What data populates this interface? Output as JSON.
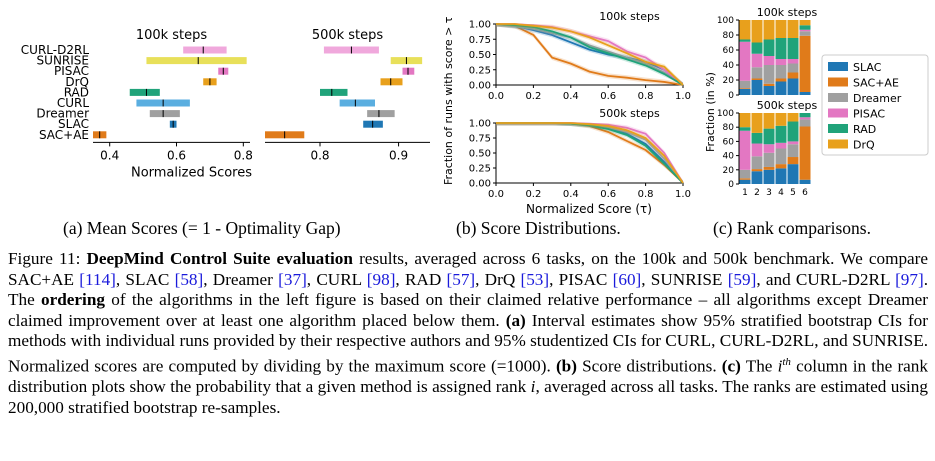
{
  "figure_title": "Figure 11:",
  "panels": {
    "a_label": "(a) Mean Scores (= 1 - Optimality Gap)",
    "b_label": "(b) Score Distributions.",
    "c_label": "(c) Rank comparisons."
  },
  "colors": {
    "SLAC": "#1f77b4",
    "SAC+AE": "#e07b1a",
    "Dreamer": "#a0a0a0",
    "PISAC": "#e377c2",
    "RAD": "#20a37a",
    "DrQ": "#e8a01c",
    "SUNRISE": "#e8e05a",
    "CURL-D2RL": "#f0a8dc",
    "CURL": "#5aaee0"
  },
  "chart_data": [
    {
      "type": "interval",
      "title": "100k steps",
      "xlabel": "Normalized Scores",
      "xlim": [
        0.35,
        0.82
      ],
      "xticks": [
        "0.4",
        "0.6",
        "0.8"
      ],
      "xtick_values": [
        0.4,
        0.6,
        0.8
      ],
      "methods": [
        "CURL-D2RL",
        "SUNRISE",
        "PISAC",
        "DrQ",
        "RAD",
        "CURL",
        "Dreamer",
        "SLAC",
        "SAC+AE"
      ],
      "lows": [
        0.62,
        0.51,
        0.725,
        0.68,
        0.46,
        0.48,
        0.52,
        0.58,
        0.35
      ],
      "highs": [
        0.75,
        0.81,
        0.755,
        0.72,
        0.55,
        0.64,
        0.61,
        0.6,
        0.39
      ],
      "means": [
        0.68,
        0.665,
        0.74,
        0.7,
        0.51,
        0.56,
        0.56,
        0.59,
        0.37
      ]
    },
    {
      "type": "interval",
      "title": "500k steps",
      "xlabel": "",
      "xlim": [
        0.73,
        0.94
      ],
      "xticks": [
        "0.8",
        "0.9"
      ],
      "xtick_values": [
        0.8,
        0.9
      ],
      "methods": [
        "CURL-D2RL",
        "SUNRISE",
        "PISAC",
        "DrQ",
        "RAD",
        "CURL",
        "Dreamer",
        "SLAC",
        "SAC+AE"
      ],
      "lows": [
        0.805,
        0.89,
        0.905,
        0.877,
        0.8,
        0.825,
        0.86,
        0.855,
        0.73
      ],
      "highs": [
        0.875,
        0.93,
        0.92,
        0.905,
        0.835,
        0.87,
        0.895,
        0.88,
        0.78
      ],
      "means": [
        0.84,
        0.91,
        0.912,
        0.89,
        0.815,
        0.845,
        0.875,
        0.867,
        0.755
      ]
    },
    {
      "type": "line",
      "title": "100k steps",
      "ylabel": "Fraction of runs with score > τ",
      "xlabel": "",
      "xlim": [
        0,
        1
      ],
      "ylim": [
        0,
        1
      ],
      "xticks": [
        "0.0",
        "0.2",
        "0.4",
        "0.6",
        "0.8",
        "1.0"
      ],
      "yticks": [
        "0.00",
        "0.25",
        "0.50",
        "0.75",
        "1.00"
      ],
      "x": [
        0.0,
        0.1,
        0.2,
        0.3,
        0.4,
        0.5,
        0.6,
        0.7,
        0.8,
        0.9,
        1.0
      ],
      "series": [
        {
          "name": "SAC+AE",
          "values": [
            1.0,
            0.97,
            0.82,
            0.45,
            0.35,
            0.22,
            0.15,
            0.12,
            0.08,
            0.05,
            0.0
          ]
        },
        {
          "name": "SLAC",
          "values": [
            1.0,
            0.97,
            0.9,
            0.82,
            0.7,
            0.58,
            0.5,
            0.45,
            0.38,
            0.25,
            0.0
          ]
        },
        {
          "name": "Dreamer",
          "values": [
            1.0,
            0.96,
            0.92,
            0.85,
            0.78,
            0.65,
            0.55,
            0.45,
            0.35,
            0.2,
            0.0
          ]
        },
        {
          "name": "PISAC",
          "values": [
            1.0,
            1.0,
            0.98,
            0.95,
            0.88,
            0.8,
            0.72,
            0.55,
            0.45,
            0.25,
            0.0
          ]
        },
        {
          "name": "RAD",
          "values": [
            1.0,
            0.98,
            0.95,
            0.88,
            0.78,
            0.62,
            0.52,
            0.42,
            0.32,
            0.18,
            0.0
          ]
        },
        {
          "name": "DrQ",
          "values": [
            1.0,
            1.0,
            0.97,
            0.94,
            0.88,
            0.78,
            0.65,
            0.52,
            0.38,
            0.3,
            0.0
          ]
        }
      ]
    },
    {
      "type": "line",
      "title": "500k steps",
      "xlabel": "Normalized Score (τ)",
      "xlim": [
        0,
        1
      ],
      "ylim": [
        0,
        1
      ],
      "xticks": [
        "0.0",
        "0.2",
        "0.4",
        "0.6",
        "0.8",
        "1.0"
      ],
      "yticks": [
        "0.00",
        "0.25",
        "0.50",
        "0.75",
        "1.00"
      ],
      "x": [
        0.0,
        0.1,
        0.2,
        0.3,
        0.4,
        0.5,
        0.6,
        0.7,
        0.8,
        0.9,
        1.0
      ],
      "series": [
        {
          "name": "SAC+AE",
          "values": [
            1.0,
            1.0,
            1.0,
            1.0,
            0.99,
            0.95,
            0.85,
            0.7,
            0.55,
            0.3,
            0.0
          ]
        },
        {
          "name": "SLAC",
          "values": [
            1.0,
            1.0,
            1.0,
            1.0,
            0.99,
            0.97,
            0.92,
            0.82,
            0.65,
            0.35,
            0.0
          ]
        },
        {
          "name": "Dreamer",
          "values": [
            1.0,
            1.0,
            1.0,
            1.0,
            1.0,
            0.98,
            0.93,
            0.85,
            0.72,
            0.4,
            0.0
          ]
        },
        {
          "name": "PISAC",
          "values": [
            1.0,
            1.0,
            1.0,
            1.0,
            1.0,
            0.99,
            0.97,
            0.92,
            0.82,
            0.5,
            0.0
          ]
        },
        {
          "name": "RAD",
          "values": [
            1.0,
            1.0,
            1.0,
            1.0,
            0.99,
            0.96,
            0.9,
            0.8,
            0.62,
            0.32,
            0.0
          ]
        },
        {
          "name": "DrQ",
          "values": [
            1.0,
            1.0,
            1.0,
            1.0,
            1.0,
            0.98,
            0.95,
            0.88,
            0.75,
            0.45,
            0.0
          ]
        }
      ]
    },
    {
      "type": "bar",
      "stacked": true,
      "title": "100k steps",
      "ylabel": "Fraction (in %)",
      "categories": [
        "1",
        "2",
        "3",
        "4",
        "5",
        "6"
      ],
      "ylim": [
        0,
        100
      ],
      "yticks": [
        "0",
        "20",
        "40",
        "60",
        "80",
        "100"
      ],
      "series": [
        {
          "name": "SLAC",
          "values": [
            8,
            20,
            12,
            18,
            22,
            4
          ]
        },
        {
          "name": "SAC+AE",
          "values": [
            1,
            2,
            3,
            4,
            8,
            75
          ]
        },
        {
          "name": "Dreamer",
          "values": [
            10,
            15,
            25,
            18,
            12,
            6
          ]
        },
        {
          "name": "PISAC",
          "values": [
            52,
            18,
            12,
            8,
            6,
            2
          ]
        },
        {
          "name": "RAD",
          "values": [
            3,
            15,
            22,
            28,
            28,
            6
          ]
        },
        {
          "name": "DrQ",
          "values": [
            26,
            30,
            26,
            24,
            24,
            7
          ]
        }
      ]
    },
    {
      "type": "bar",
      "stacked": true,
      "title": "500k steps",
      "xlabel": "",
      "categories": [
        "1",
        "2",
        "3",
        "4",
        "5",
        "6"
      ],
      "ylim": [
        0,
        100
      ],
      "yticks": [
        "0",
        "20",
        "40",
        "60",
        "80",
        "100"
      ],
      "series": [
        {
          "name": "SLAC",
          "values": [
            6,
            18,
            20,
            22,
            28,
            6
          ]
        },
        {
          "name": "SAC+AE",
          "values": [
            2,
            3,
            4,
            6,
            10,
            75
          ]
        },
        {
          "name": "Dreamer",
          "values": [
            12,
            18,
            20,
            22,
            18,
            10
          ]
        },
        {
          "name": "PISAC",
          "values": [
            55,
            18,
            12,
            8,
            4,
            3
          ]
        },
        {
          "name": "RAD",
          "values": [
            5,
            15,
            22,
            24,
            28,
            6
          ]
        },
        {
          "name": "DrQ",
          "values": [
            20,
            28,
            22,
            18,
            12,
            0
          ]
        }
      ],
      "legend": [
        "SLAC",
        "SAC+AE",
        "Dreamer",
        "PISAC",
        "RAD",
        "DrQ"
      ]
    }
  ],
  "caption": {
    "fig_label": "Figure 11:",
    "bold_title": "DeepMind Control Suite evaluation",
    "p1": " results, averaged across 6 tasks, on the 100k and 500k benchmark. We compare SAC+AE ",
    "c1": "[114]",
    "p2": ", SLAC ",
    "c2": "[58]",
    "p3": ", Dreamer ",
    "c3": "[37]",
    "p4": ", CURL ",
    "c4": "[98]",
    "p5": ", RAD ",
    "c5": "[57]",
    "p6": ", DrQ ",
    "c6": "[53]",
    "p7": ", PISAC ",
    "c7": "[60]",
    "p8": ", SUNRISE ",
    "c8": "[59]",
    "p9": ", and CURL-D2RL ",
    "c9": "[97]",
    "p10": ". The ",
    "bold_ordering": "ordering",
    "p11": " of the algorithms in the left figure is based on their claimed relative performance – all algorithms except Dreamer claimed improvement over at least one algorithm placed below them. ",
    "bold_a": "(a)",
    "p12": " Interval estimates show 95% stratified bootstrap CIs for methods with individual runs provided by their respective authors and 95% studentized CIs for CURL, CURL-D2RL, and SUNRISE. Normalized scores are computed by dividing by the maximum score (=1000). ",
    "bold_b": "(b)",
    "p13": " Score distributions. ",
    "bold_c": "(c)",
    "p14a": " The ",
    "ith": "i",
    "ith_sup": "th",
    "p14b": " column in the rank distribution plots show the probability that a given method is assigned rank ",
    "rank_i": "i",
    "p15": ", averaged across all tasks. The ranks are estimated using 200,000 stratified bootstrap re-samples."
  }
}
